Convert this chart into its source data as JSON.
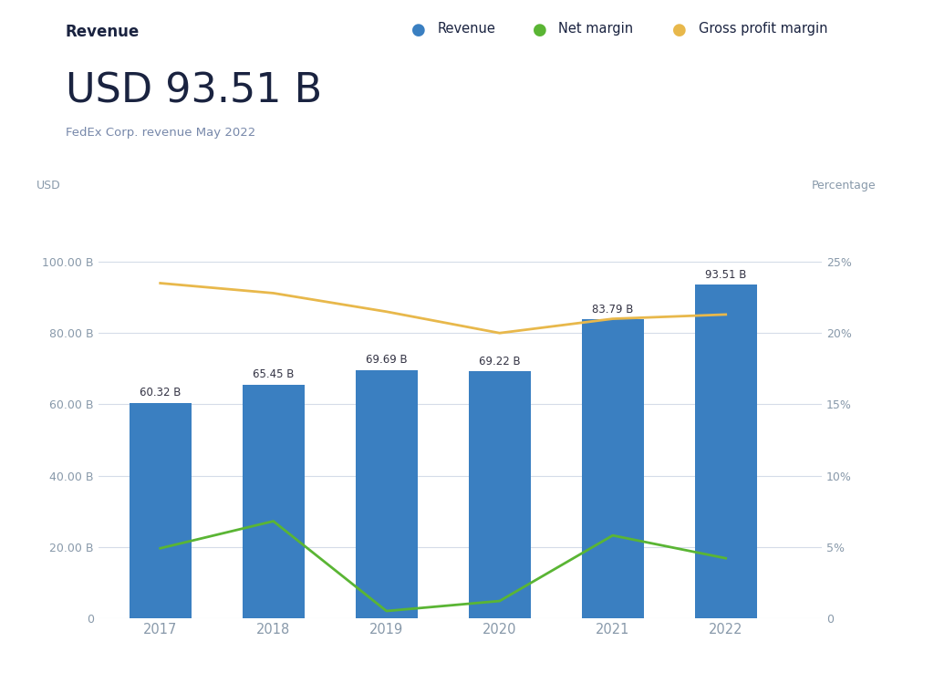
{
  "years": [
    2017,
    2018,
    2019,
    2020,
    2021,
    2022
  ],
  "revenue": [
    60.32,
    65.45,
    69.69,
    69.22,
    83.79,
    93.51
  ],
  "net_margin_pct": [
    4.9,
    6.8,
    0.5,
    1.2,
    5.8,
    4.2
  ],
  "gross_profit_margin_pct": [
    23.5,
    22.8,
    21.5,
    20.0,
    21.0,
    21.3
  ],
  "bar_color": "#3a7fc1",
  "net_margin_color": "#5ab534",
  "gross_margin_color": "#e8b84b",
  "bar_labels": [
    "60.32 B",
    "65.45 B",
    "69.69 B",
    "69.22 B",
    "83.79 B",
    "93.51 B"
  ],
  "title_small": "Revenue",
  "title_large": "USD 93.51 B",
  "subtitle": "FedEx Corp. revenue May 2022",
  "left_axis_label": "USD",
  "right_axis_label": "Percentage",
  "ylim_left": [
    0,
    115
  ],
  "ylim_right": [
    0,
    28.75
  ],
  "yticks_left": [
    0,
    20,
    40,
    60,
    80,
    100
  ],
  "ytick_labels_left": [
    "0",
    "20.00 B",
    "40.00 B",
    "60.00 B",
    "80.00 B",
    "100.00 B"
  ],
  "yticks_right": [
    0,
    5,
    10,
    15,
    20,
    25
  ],
  "ytick_labels_right": [
    "0",
    "5%",
    "10%",
    "15%",
    "20%",
    "25%"
  ],
  "background_color": "#ffffff",
  "grid_color": "#d5dce8",
  "text_color": "#1a2340",
  "axis_label_color": "#8899aa",
  "tick_color": "#8899aa",
  "legend_labels": [
    "Revenue",
    "Net margin",
    "Gross profit margin"
  ],
  "subtitle_color": "#7788aa",
  "bar_label_color": "#333344"
}
